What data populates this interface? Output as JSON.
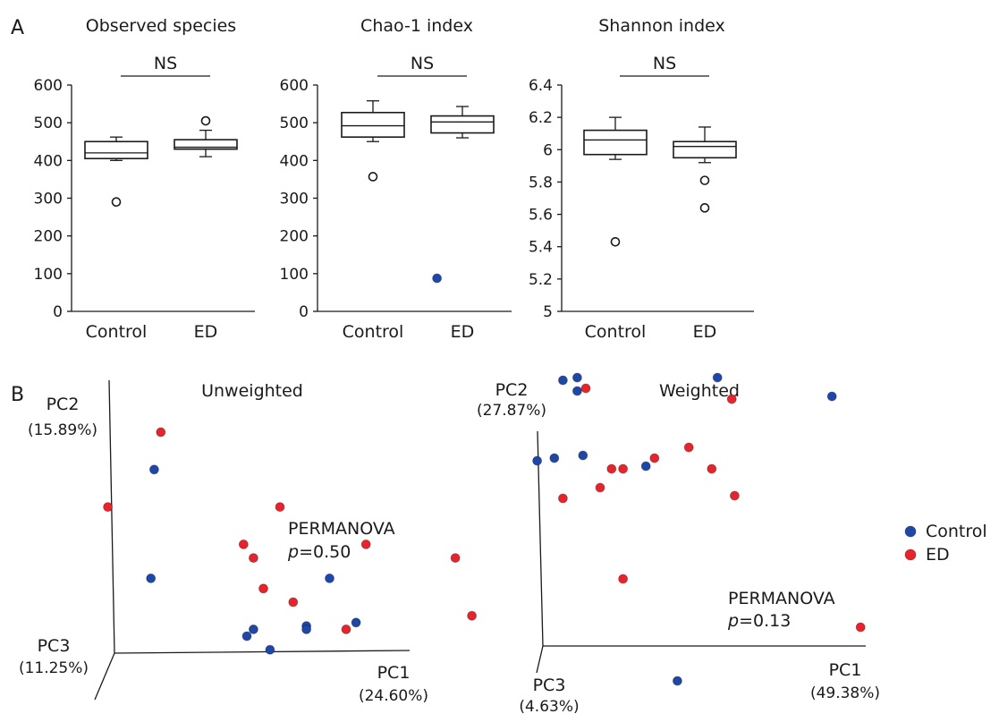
{
  "panel_labels": {
    "a": "A",
    "b": "B"
  },
  "significance_label": "NS",
  "colors": {
    "control": "#1f47a8",
    "ed": "#e8232b"
  },
  "chart_data": [
    {
      "type": "box",
      "title": "Observed species",
      "categories": [
        "Control",
        "ED"
      ],
      "ylim": [
        0,
        600
      ],
      "yticks": [
        0,
        100,
        200,
        300,
        400,
        500,
        600
      ],
      "ytick_labels": [
        "0",
        "100",
        "200",
        "300",
        "400",
        "500",
        "600"
      ],
      "series": [
        {
          "group": "Control",
          "whisker_low": 400,
          "q1": 405,
          "median": 420,
          "q3": 450,
          "whisker_high": 462,
          "outliers": [
            290
          ]
        },
        {
          "group": "ED",
          "whisker_low": 410,
          "q1": 430,
          "median": 435,
          "q3": 455,
          "whisker_high": 480,
          "outliers": [
            505
          ]
        }
      ],
      "annotation": "NS"
    },
    {
      "type": "box",
      "title": "Chao-1 index",
      "categories": [
        "Control",
        "ED"
      ],
      "ylim": [
        0,
        600
      ],
      "yticks": [
        0,
        100,
        200,
        300,
        400,
        500,
        600
      ],
      "ytick_labels": [
        "0",
        "100",
        "200",
        "300",
        "400",
        "500",
        "600"
      ],
      "series": [
        {
          "group": "Control",
          "whisker_low": 450,
          "q1": 462,
          "median": 492,
          "q3": 527,
          "whisker_high": 558,
          "outliers": [
            357
          ]
        },
        {
          "group": "ED",
          "whisker_low": 460,
          "q1": 473,
          "median": 502,
          "q3": 518,
          "whisker_high": 543,
          "outliers": []
        }
      ],
      "annotation": "NS"
    },
    {
      "type": "box",
      "title": "Shannon index",
      "categories": [
        "Control",
        "ED"
      ],
      "ylim": [
        5,
        6.4
      ],
      "yticks": [
        5,
        5.2,
        5.4,
        5.6,
        5.8,
        6,
        6.2,
        6.4
      ],
      "ytick_labels": [
        "5",
        "5.2",
        "5.4",
        "5.6",
        "5.8",
        "6",
        "6.2",
        "6.4"
      ],
      "series": [
        {
          "group": "Control",
          "whisker_low": 5.94,
          "q1": 5.97,
          "median": 6.06,
          "q3": 6.12,
          "whisker_high": 6.2,
          "outliers": [
            5.43
          ]
        },
        {
          "group": "ED",
          "whisker_low": 5.92,
          "q1": 5.95,
          "median": 6.02,
          "q3": 6.05,
          "whisker_high": 6.14,
          "outliers": [
            5.81,
            5.64
          ]
        }
      ],
      "annotation": "NS"
    },
    {
      "type": "scatter",
      "title": "Unweighted",
      "axes": {
        "pc1": {
          "name": "PC1",
          "pct": "(24.60%)"
        },
        "pc2": {
          "name": "PC2",
          "pct": "(15.89%)"
        },
        "pc3": {
          "name": "PC3",
          "pct": "(11.25%)"
        }
      },
      "stat": {
        "test": "PERMANOVA",
        "p_label": "p",
        "p_value": "=0.50"
      },
      "projection_note": "Values are 2-D projected coordinates of the 3-D PCoA (0-100 scale)",
      "series": [
        {
          "name": "Control",
          "x": [
            12,
            11,
            65,
            42,
            40,
            47,
            73,
            58,
            58
          ],
          "y": [
            54,
            22,
            22,
            7,
            5,
            1,
            9,
            8,
            7
          ]
        },
        {
          "name": "ED",
          "x": [
            -2,
            14,
            50,
            39,
            42,
            45,
            54,
            76,
            103,
            108,
            70
          ],
          "y": [
            43,
            65,
            43,
            32,
            28,
            19,
            15,
            32,
            28,
            11,
            7
          ]
        }
      ]
    },
    {
      "type": "scatter",
      "title": "Weighted",
      "axes": {
        "pc1": {
          "name": "PC1",
          "pct": "(49.38%)"
        },
        "pc2": {
          "name": "PC2",
          "pct": "(27.87%)"
        },
        "pc3": {
          "name": "PC3",
          "pct": "(4.63%)"
        }
      },
      "stat": {
        "test": "PERMANOVA",
        "p_label": "p",
        "p_value": "=0.13"
      },
      "projection_note": "Values are 2-D projected coordinates of the 3-D PCoA (0-100 scale)",
      "series": [
        {
          "name": "Control",
          "x": [
            -37,
            7,
            12,
            12,
            -2,
            4,
            14,
            36,
            61,
            101,
            47
          ],
          "y": [
            137,
            99,
            100,
            95,
            69,
            70,
            71,
            67,
            100,
            93,
            -13
          ]
        },
        {
          "name": "ED",
          "x": [
            15,
            24,
            28,
            20,
            39,
            51,
            59,
            67,
            66,
            111,
            7,
            28
          ],
          "y": [
            96,
            66,
            66,
            59,
            70,
            74,
            66,
            56,
            92,
            7,
            55,
            25
          ]
        }
      ]
    }
  ],
  "legend": {
    "items": [
      {
        "label": "Control",
        "color_key": "control"
      },
      {
        "label": "ED",
        "color_key": "ed"
      }
    ]
  }
}
